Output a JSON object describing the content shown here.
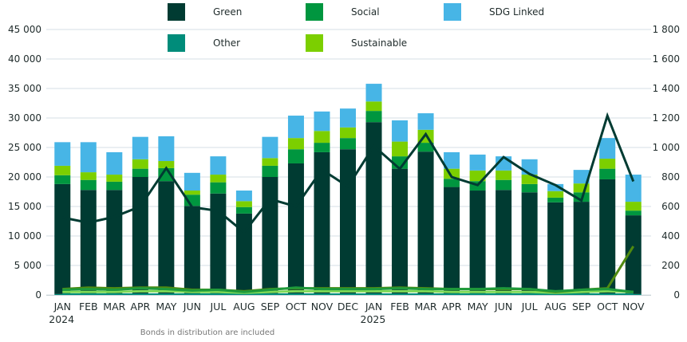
{
  "chart_data": {
    "type": "bar",
    "stacked": true,
    "title": "",
    "note": "Bonds in distribution are included",
    "categories": [
      "JAN",
      "FEB",
      "MAR",
      "APR",
      "MAY",
      "JUN",
      "JUL",
      "AUG",
      "SEP",
      "OCT",
      "NOV",
      "DEC",
      "JAN",
      "FEB",
      "MAR",
      "APR",
      "MAY",
      "JUN",
      "JUL",
      "AUG",
      "SEP",
      "OCT",
      "NOV"
    ],
    "year_labels": [
      {
        "index": 0,
        "label": "2024"
      },
      {
        "index": 12,
        "label": "2025"
      }
    ],
    "y_left": {
      "min": 0,
      "max": 45000,
      "ticks": [
        0,
        5000,
        10000,
        15000,
        20000,
        25000,
        30000,
        35000,
        40000,
        45000
      ],
      "tick_labels": [
        "0",
        "5 000",
        "10 000",
        "15 000",
        "20 000",
        "25 000",
        "30 000",
        "35 000",
        "40 000",
        "45 000"
      ]
    },
    "y_right": {
      "min": 0,
      "max": 1800,
      "ticks": [
        0,
        200,
        400,
        600,
        800,
        1000,
        1200,
        1400,
        1600,
        1800
      ],
      "tick_labels": [
        "0",
        "200",
        "400",
        "600",
        "800",
        "1 000",
        "1 200",
        "1 400",
        "1 600",
        "1 800"
      ]
    },
    "grid": true,
    "legend": {
      "placement": "top-center",
      "items": [
        {
          "name": "Green",
          "color": "#003b32"
        },
        {
          "name": "Social",
          "color": "#00963f"
        },
        {
          "name": "SDG Linked",
          "color": "#47b5e6"
        },
        {
          "name": "Other",
          "color": "#008c7a"
        },
        {
          "name": "Sustainable",
          "color": "#7ccf00"
        }
      ]
    },
    "bar_series": [
      {
        "name": "Other",
        "color": "#008c7a",
        "values": [
          150,
          150,
          150,
          150,
          150,
          150,
          150,
          150,
          150,
          150,
          150,
          150,
          150,
          150,
          150,
          150,
          150,
          150,
          150,
          150,
          150,
          150,
          150
        ]
      },
      {
        "name": "Green",
        "color": "#003b32",
        "values": [
          18650,
          17650,
          17650,
          19850,
          19150,
          14950,
          17050,
          13650,
          19850,
          22150,
          24050,
          24550,
          29150,
          21250,
          24150,
          18150,
          17550,
          17650,
          17250,
          15550,
          15650,
          19450,
          13350
        ]
      },
      {
        "name": "Social",
        "color": "#00963f",
        "values": [
          1500,
          1700,
          1400,
          1400,
          2200,
          1900,
          1900,
          1100,
          1900,
          2400,
          1600,
          1900,
          1900,
          2100,
          1500,
          1400,
          1600,
          1700,
          1400,
          800,
          1600,
          1800,
          800
        ]
      },
      {
        "name": "Sustainable",
        "color": "#7ccf00",
        "values": [
          1600,
          1300,
          1200,
          1600,
          1200,
          700,
          1300,
          1000,
          1300,
          1900,
          2000,
          1800,
          1600,
          2500,
          2200,
          1700,
          1800,
          1600,
          1600,
          1100,
          1500,
          1700,
          1500
        ]
      },
      {
        "name": "SDG Linked",
        "color": "#47b5e6",
        "values": [
          4000,
          5100,
          3800,
          3800,
          4200,
          3000,
          3100,
          1800,
          3600,
          3800,
          3300,
          3200,
          3000,
          3600,
          2800,
          2800,
          2700,
          2400,
          2600,
          1200,
          2300,
          3500,
          4600
        ]
      }
    ],
    "line_series": [
      {
        "name": "Green (count)",
        "axis": "right",
        "color": "#003b32",
        "values": [
          525,
          490,
          530,
          600,
          860,
          595,
          570,
          425,
          650,
          600,
          850,
          735,
          1010,
          855,
          1090,
          800,
          745,
          935,
          820,
          745,
          640,
          1215,
          770
        ]
      },
      {
        "name": "Social (count)",
        "axis": "right",
        "color": "#1e9a3c",
        "values": [
          35,
          40,
          35,
          45,
          40,
          30,
          35,
          20,
          35,
          50,
          40,
          40,
          40,
          45,
          40,
          40,
          40,
          45,
          40,
          25,
          35,
          40,
          20
        ]
      },
      {
        "name": "Sustainable (count)",
        "axis": "right",
        "color": "#4f8a10",
        "values": [
          40,
          50,
          45,
          50,
          50,
          35,
          35,
          25,
          40,
          45,
          45,
          45,
          45,
          50,
          45,
          40,
          40,
          40,
          40,
          20,
          35,
          45,
          330
        ]
      },
      {
        "name": "SDG Linked (count)",
        "axis": "right",
        "color": "#7ed957",
        "values": [
          20,
          20,
          20,
          25,
          25,
          20,
          20,
          15,
          20,
          25,
          25,
          25,
          25,
          25,
          25,
          20,
          20,
          20,
          20,
          15,
          20,
          25,
          20
        ]
      },
      {
        "name": "Other (count)",
        "axis": "right",
        "color": "#008c7a",
        "values": [
          3,
          3,
          3,
          3,
          3,
          3,
          3,
          3,
          3,
          3,
          3,
          3,
          3,
          3,
          3,
          3,
          3,
          3,
          3,
          3,
          3,
          3,
          3
        ]
      }
    ]
  }
}
